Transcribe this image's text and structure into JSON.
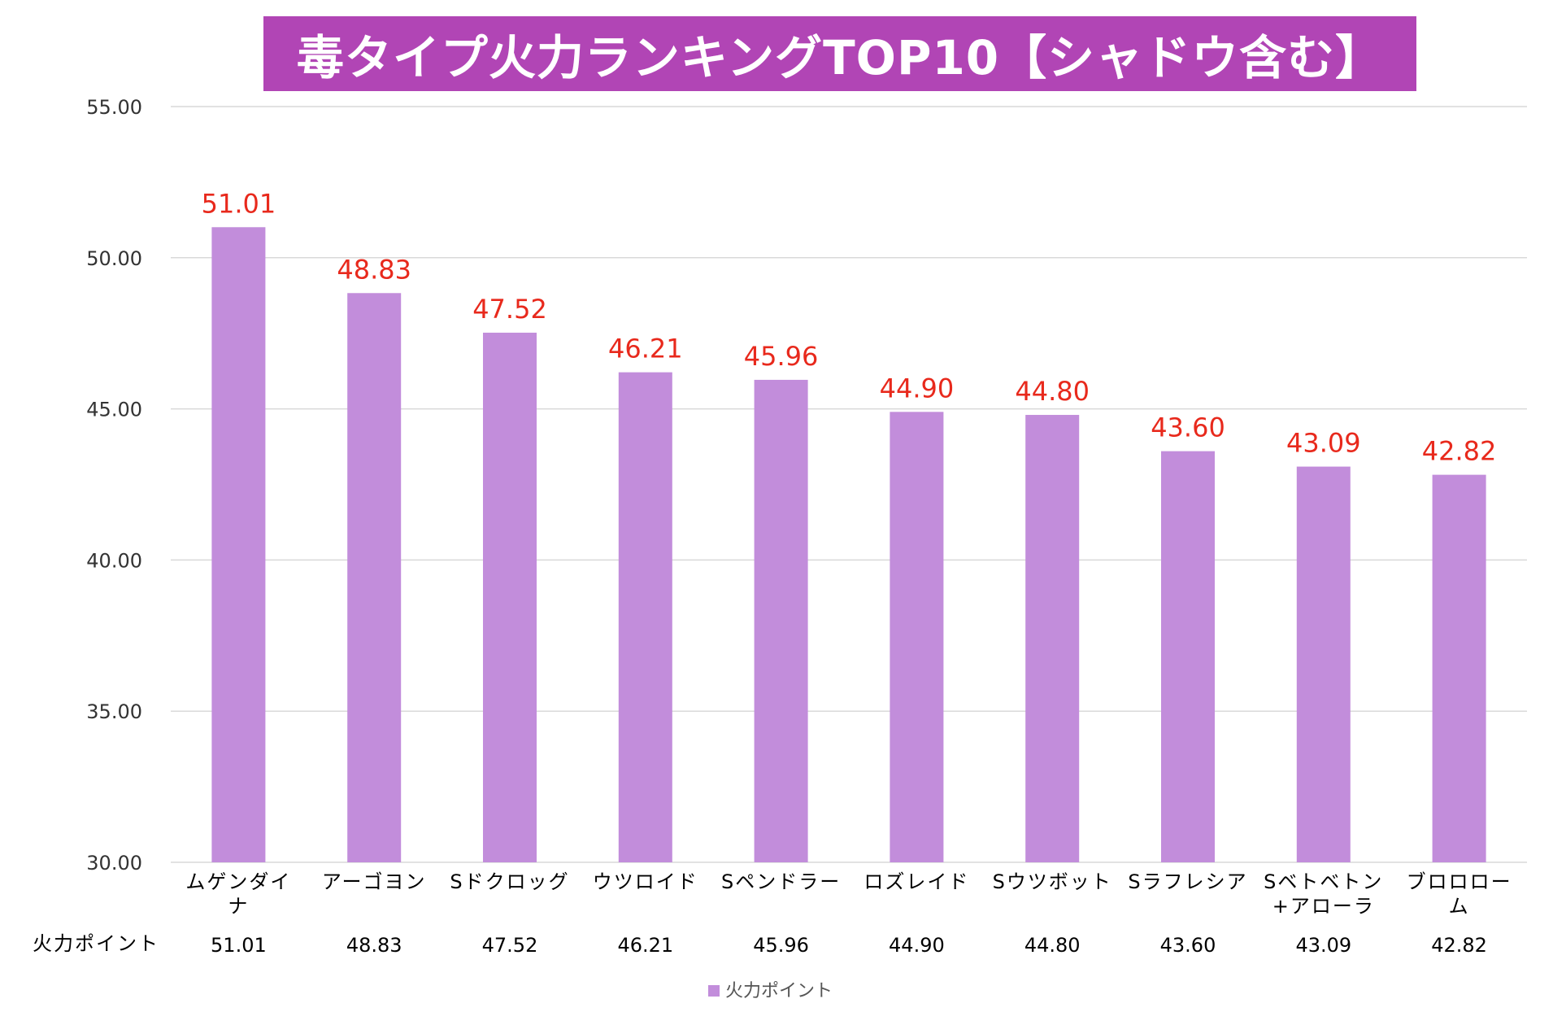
{
  "title": "毒タイプ火力ランキングTOP10【シャドウ含む】",
  "colors": {
    "title_bg": "#b145b5",
    "title_text": "#ffffff",
    "bar": "#c28ddb",
    "data_label": "#e8291c",
    "axis_text": "#333333",
    "gridline": "#d9d9d9",
    "table_text": "#000000"
  },
  "chart_data": {
    "type": "bar",
    "title": "毒タイプ火力ランキングTOP10【シャドウ含む】",
    "categories": [
      [
        "ムゲンダイ",
        "ナ"
      ],
      [
        "アーゴヨン"
      ],
      [
        "Sドクロッグ"
      ],
      [
        "ウツロイド"
      ],
      [
        "Sペンドラー"
      ],
      [
        "ロズレイド"
      ],
      [
        "Sウツボット"
      ],
      [
        "Sラフレシア"
      ],
      [
        "Sベトベトン",
        "+アローラ"
      ],
      [
        "ブロロロー",
        "ム"
      ]
    ],
    "series": [
      {
        "name": "火力ポイント",
        "values": [
          51.01,
          48.83,
          47.52,
          46.21,
          45.96,
          44.9,
          44.8,
          43.6,
          43.09,
          42.82
        ],
        "labels": [
          "51.01",
          "48.83",
          "47.52",
          "46.21",
          "45.96",
          "44.90",
          "44.80",
          "43.60",
          "43.09",
          "42.82"
        ]
      }
    ],
    "ylim": [
      30,
      55
    ],
    "yticks": [
      "30.00",
      "35.00",
      "40.00",
      "45.00",
      "50.00",
      "55.00"
    ],
    "ytick_values": [
      30,
      35,
      40,
      45,
      50,
      55
    ],
    "grid": true,
    "legend": {
      "position": "bottom",
      "label": "火力ポイント"
    },
    "data_table": {
      "row_header": "火力ポイント",
      "values": [
        "51.01",
        "48.83",
        "47.52",
        "46.21",
        "45.96",
        "44.90",
        "44.80",
        "43.60",
        "43.09",
        "42.82"
      ]
    }
  }
}
